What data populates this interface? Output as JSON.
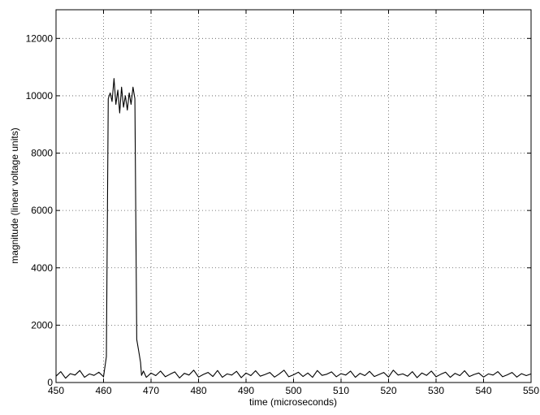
{
  "chart_data": {
    "type": "line",
    "title": "",
    "xlabel": "time (microseconds)",
    "ylabel": "magnitude (linear voltage units)",
    "xlim": [
      450,
      550
    ],
    "ylim": [
      0,
      13000
    ],
    "x_ticks": [
      450,
      460,
      470,
      480,
      490,
      500,
      510,
      520,
      530,
      540,
      550
    ],
    "y_ticks": [
      0,
      2000,
      4000,
      6000,
      8000,
      10000,
      12000
    ],
    "grid": true,
    "grid_style": "dotted",
    "line_color": "#000000",
    "series": [
      {
        "x": [
          450,
          451,
          452,
          453,
          454,
          455,
          456,
          457,
          458,
          459,
          460,
          460.6,
          461,
          461.4,
          461.8,
          462.2,
          462.6,
          463,
          463.4,
          463.8,
          464.2,
          464.6,
          465,
          465.4,
          465.8,
          466.2,
          466.6,
          467,
          467.4,
          467.8,
          468,
          468.4,
          469,
          470,
          471,
          472,
          473,
          474,
          475,
          476,
          477,
          478,
          479,
          480,
          481,
          482,
          483,
          484,
          485,
          486,
          487,
          488,
          489,
          490,
          491,
          492,
          493,
          494,
          495,
          496,
          497,
          498,
          499,
          500,
          501,
          502,
          503,
          504,
          505,
          506,
          507,
          508,
          509,
          510,
          511,
          512,
          513,
          514,
          515,
          516,
          517,
          518,
          519,
          520,
          521,
          522,
          523,
          524,
          525,
          526,
          527,
          528,
          529,
          530,
          531,
          532,
          533,
          534,
          535,
          536,
          537,
          538,
          539,
          540,
          541,
          542,
          543,
          544,
          545,
          546,
          547,
          548,
          549,
          550
        ],
        "y": [
          220,
          380,
          150,
          310,
          260,
          420,
          180,
          300,
          250,
          360,
          200,
          900,
          9900,
          10100,
          9800,
          10600,
          9700,
          10200,
          9400,
          10300,
          9600,
          10000,
          9500,
          10100,
          9700,
          10300,
          9900,
          1500,
          1100,
          700,
          250,
          400,
          180,
          330,
          240,
          400,
          200,
          290,
          370,
          160,
          320,
          260,
          430,
          190,
          280,
          350,
          210,
          420,
          180,
          300,
          260,
          390,
          170,
          330,
          240,
          410,
          220,
          280,
          350,
          190,
          300,
          430,
          200,
          270,
          360,
          210,
          330,
          180,
          420,
          250,
          290,
          370,
          200,
          310,
          260,
          400,
          180,
          320,
          240,
          390,
          210,
          280,
          350,
          190,
          430,
          260,
          300,
          220,
          380,
          170,
          330,
          250,
          400,
          200,
          290,
          360,
          180,
          320,
          240,
          410,
          210,
          280,
          330,
          190,
          300,
          260,
          380,
          200,
          270,
          350,
          190,
          310,
          240,
          300
        ]
      }
    ]
  }
}
